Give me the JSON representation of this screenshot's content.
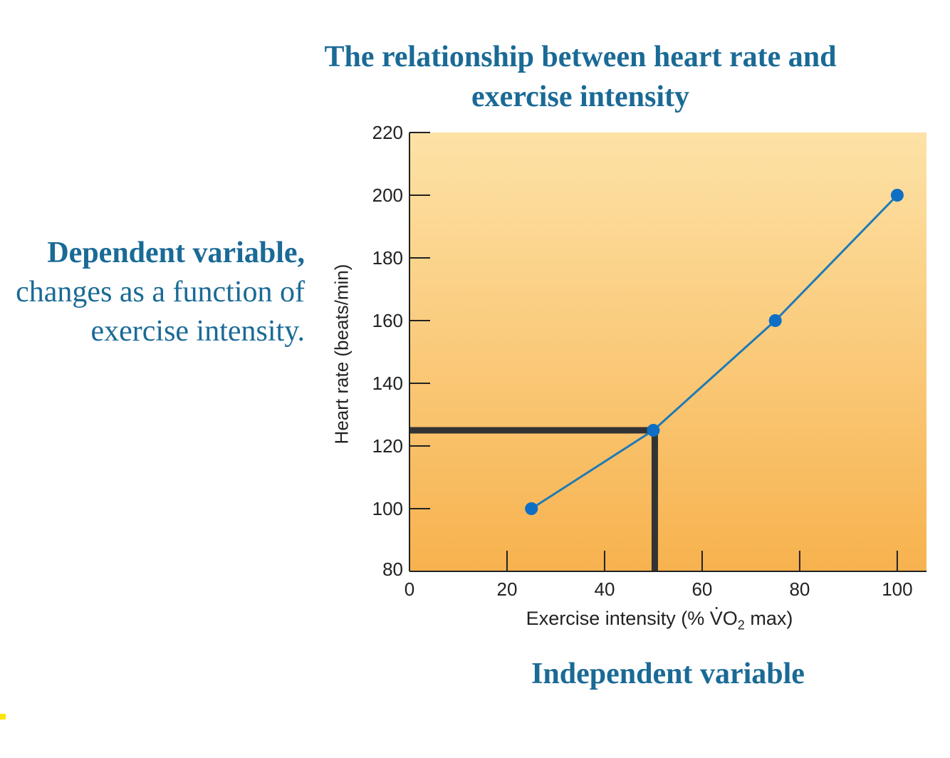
{
  "slide": {
    "title_line1": "The relationship between heart rate and",
    "title_line2": "exercise intensity",
    "dependent_bold": "Dependent variable,",
    "dependent_line2": "changes as a function of",
    "dependent_line3": "exercise intensity.",
    "independent_label": "Independent variable"
  },
  "colors": {
    "heading": "#1a6a96",
    "series": "#1f7ab7",
    "marker": "#0e6fc4",
    "guide": "#333333",
    "bg_top": "#fde2a6",
    "bg_bottom": "#f7b24e"
  },
  "chart_data": {
    "type": "line",
    "xlabel_prefix": "Exercise intensity (% ",
    "xlabel_v": "V",
    "xlabel_o": "O",
    "xlabel_sub": "2",
    "xlabel_suffix": " max)",
    "ylabel": "Heart rate (beats/min)",
    "xlim": [
      0,
      106
    ],
    "ylim": [
      80,
      220
    ],
    "xticks": [
      0,
      20,
      40,
      60,
      80,
      100
    ],
    "yticks": [
      80,
      100,
      120,
      140,
      160,
      180,
      200,
      220
    ],
    "series": [
      {
        "name": "Heart rate",
        "x": [
          25,
          50,
          75,
          100
        ],
        "y": [
          100,
          125,
          160,
          200
        ]
      }
    ],
    "guide_point": {
      "x": 50,
      "y": 125
    }
  }
}
